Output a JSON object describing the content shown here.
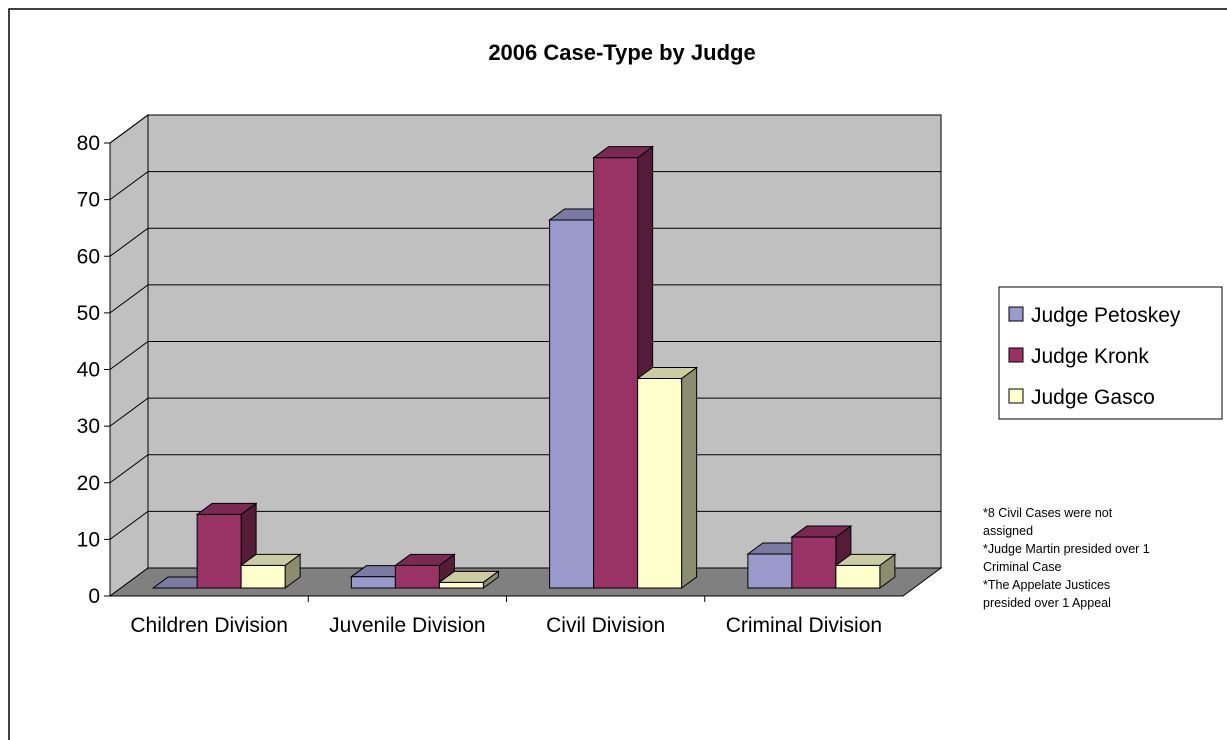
{
  "chart_data": {
    "type": "bar",
    "title": "2006 Case-Type by Judge",
    "categories": [
      "Children Division",
      "Juvenile Division",
      "Civil Division",
      "Criminal Division"
    ],
    "series": [
      {
        "name": "Judge Petoskey",
        "values": [
          0,
          2,
          65,
          6
        ],
        "color": "#9999cc"
      },
      {
        "name": "Judge Kronk",
        "values": [
          13,
          4,
          76,
          9
        ],
        "color": "#993366"
      },
      {
        "name": "Judge Gasco",
        "values": [
          4,
          1,
          37,
          4
        ],
        "color": "#ffffcc"
      }
    ],
    "xlabel": "",
    "ylabel": "",
    "ylim": [
      0,
      80
    ],
    "yticks": [
      "0",
      "10",
      "20",
      "30",
      "40",
      "50",
      "60",
      "70",
      "80"
    ],
    "grid": true,
    "legend_position": "right",
    "style": "3d-clustered-column",
    "wall_color": "#c0c0c0",
    "floor_color": "#808080"
  },
  "notes": [
    [
      "*8 Civil Cases were not",
      " assigned"
    ],
    [
      "*Judge Martin presided over 1",
      " Criminal Case"
    ],
    [
      "*The Appelate Justices",
      " presided over 1 Appeal"
    ]
  ]
}
